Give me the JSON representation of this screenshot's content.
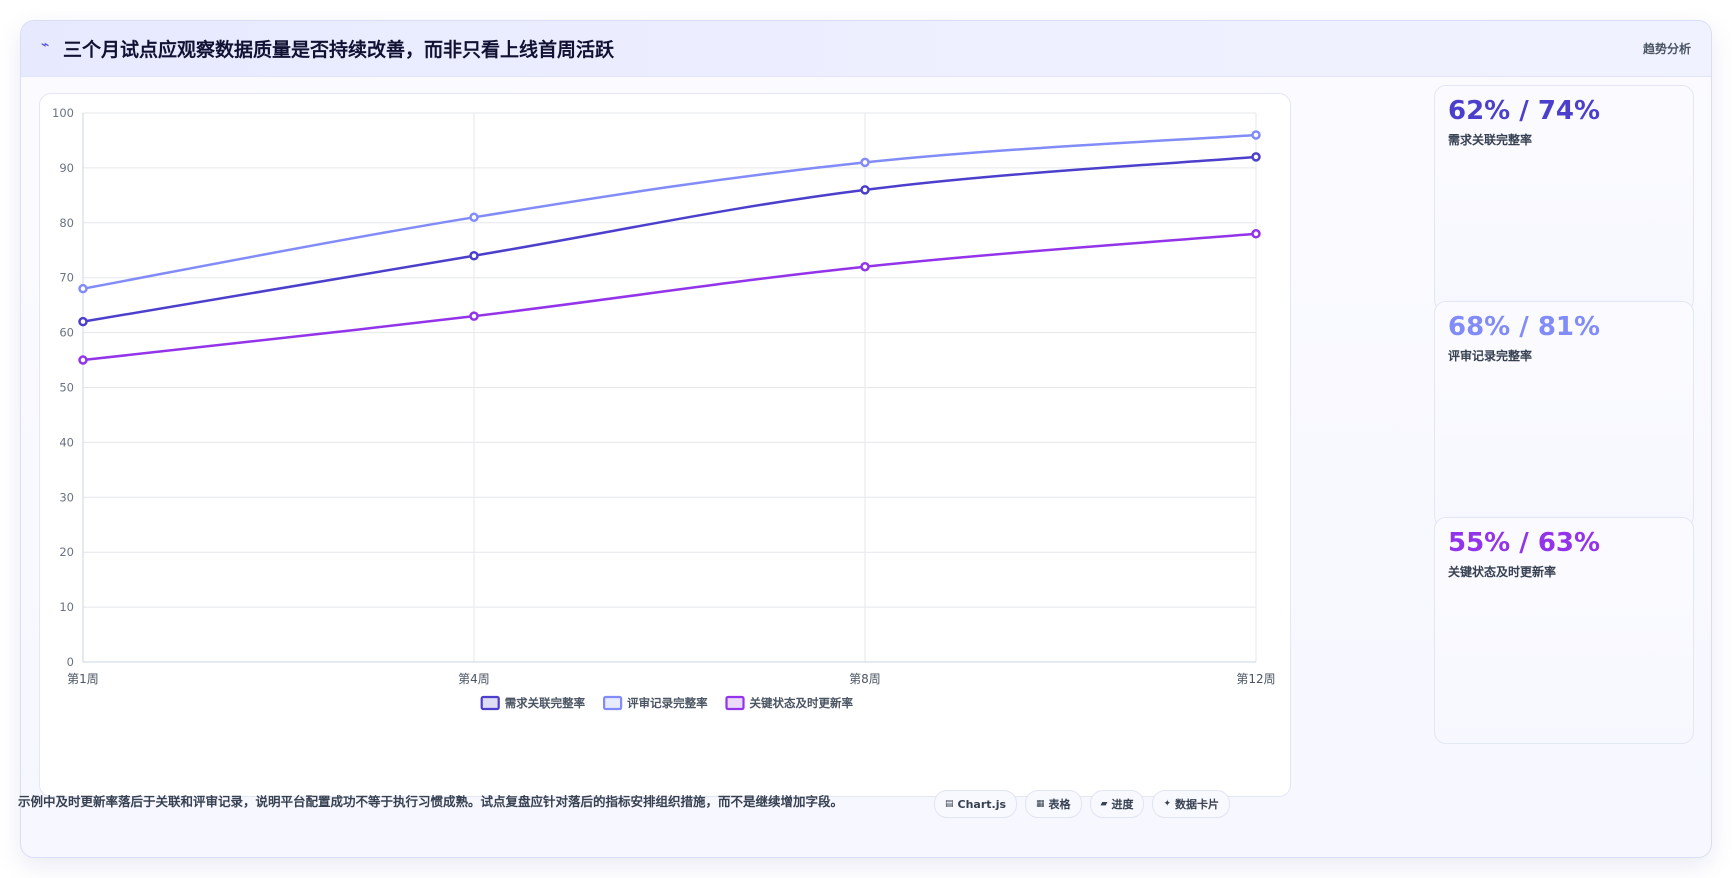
{
  "header": {
    "icon": "pulse-icon",
    "title": "三个月试点应观察数据质量是否持续改善，而非只看上线首周活跃",
    "tag": "趋势分析"
  },
  "colors": {
    "series1": "#4b3fcc",
    "series2": "#818cf8",
    "series3": "#9333ea"
  },
  "chart_data": {
    "type": "line",
    "categories": [
      "第1周",
      "第4周",
      "第8周",
      "第12周"
    ],
    "series": [
      {
        "name": "需求关联完整率",
        "values": [
          62,
          74,
          86,
          92
        ],
        "color": "#4b3fcc"
      },
      {
        "name": "评审记录完整率",
        "values": [
          68,
          81,
          91,
          96
        ],
        "color": "#818cf8"
      },
      {
        "name": "关键状态及时更新率",
        "values": [
          55,
          63,
          72,
          78
        ],
        "color": "#9333ea"
      }
    ],
    "ylim": [
      0,
      100
    ],
    "yticks": [
      0,
      10,
      20,
      30,
      40,
      50,
      60,
      70,
      80,
      90,
      100
    ],
    "grid": true,
    "legend": "bottom"
  },
  "cards": [
    {
      "value": "62% / 74%",
      "label": "需求关联完整率",
      "color": "#4b3fcc"
    },
    {
      "value": "68% / 81%",
      "label": "评审记录完整率",
      "color": "#818cf8"
    },
    {
      "value": "55% / 63%",
      "label": "关键状态及时更新率",
      "color": "#9333ea"
    }
  ],
  "footer": {
    "note": "示例中及时更新率落后于关联和评审记录，说明平台配置成功不等于执行习惯成熟。试点复盘应针对落后的指标安排组织措施，而不是继续增加字段。",
    "pills": [
      {
        "icon": "chart-icon",
        "label": "Chart.js"
      },
      {
        "icon": "table-icon",
        "label": "表格"
      },
      {
        "icon": "progress-icon",
        "label": "进度"
      },
      {
        "icon": "sparkle-icon",
        "label": "数据卡片"
      }
    ]
  }
}
